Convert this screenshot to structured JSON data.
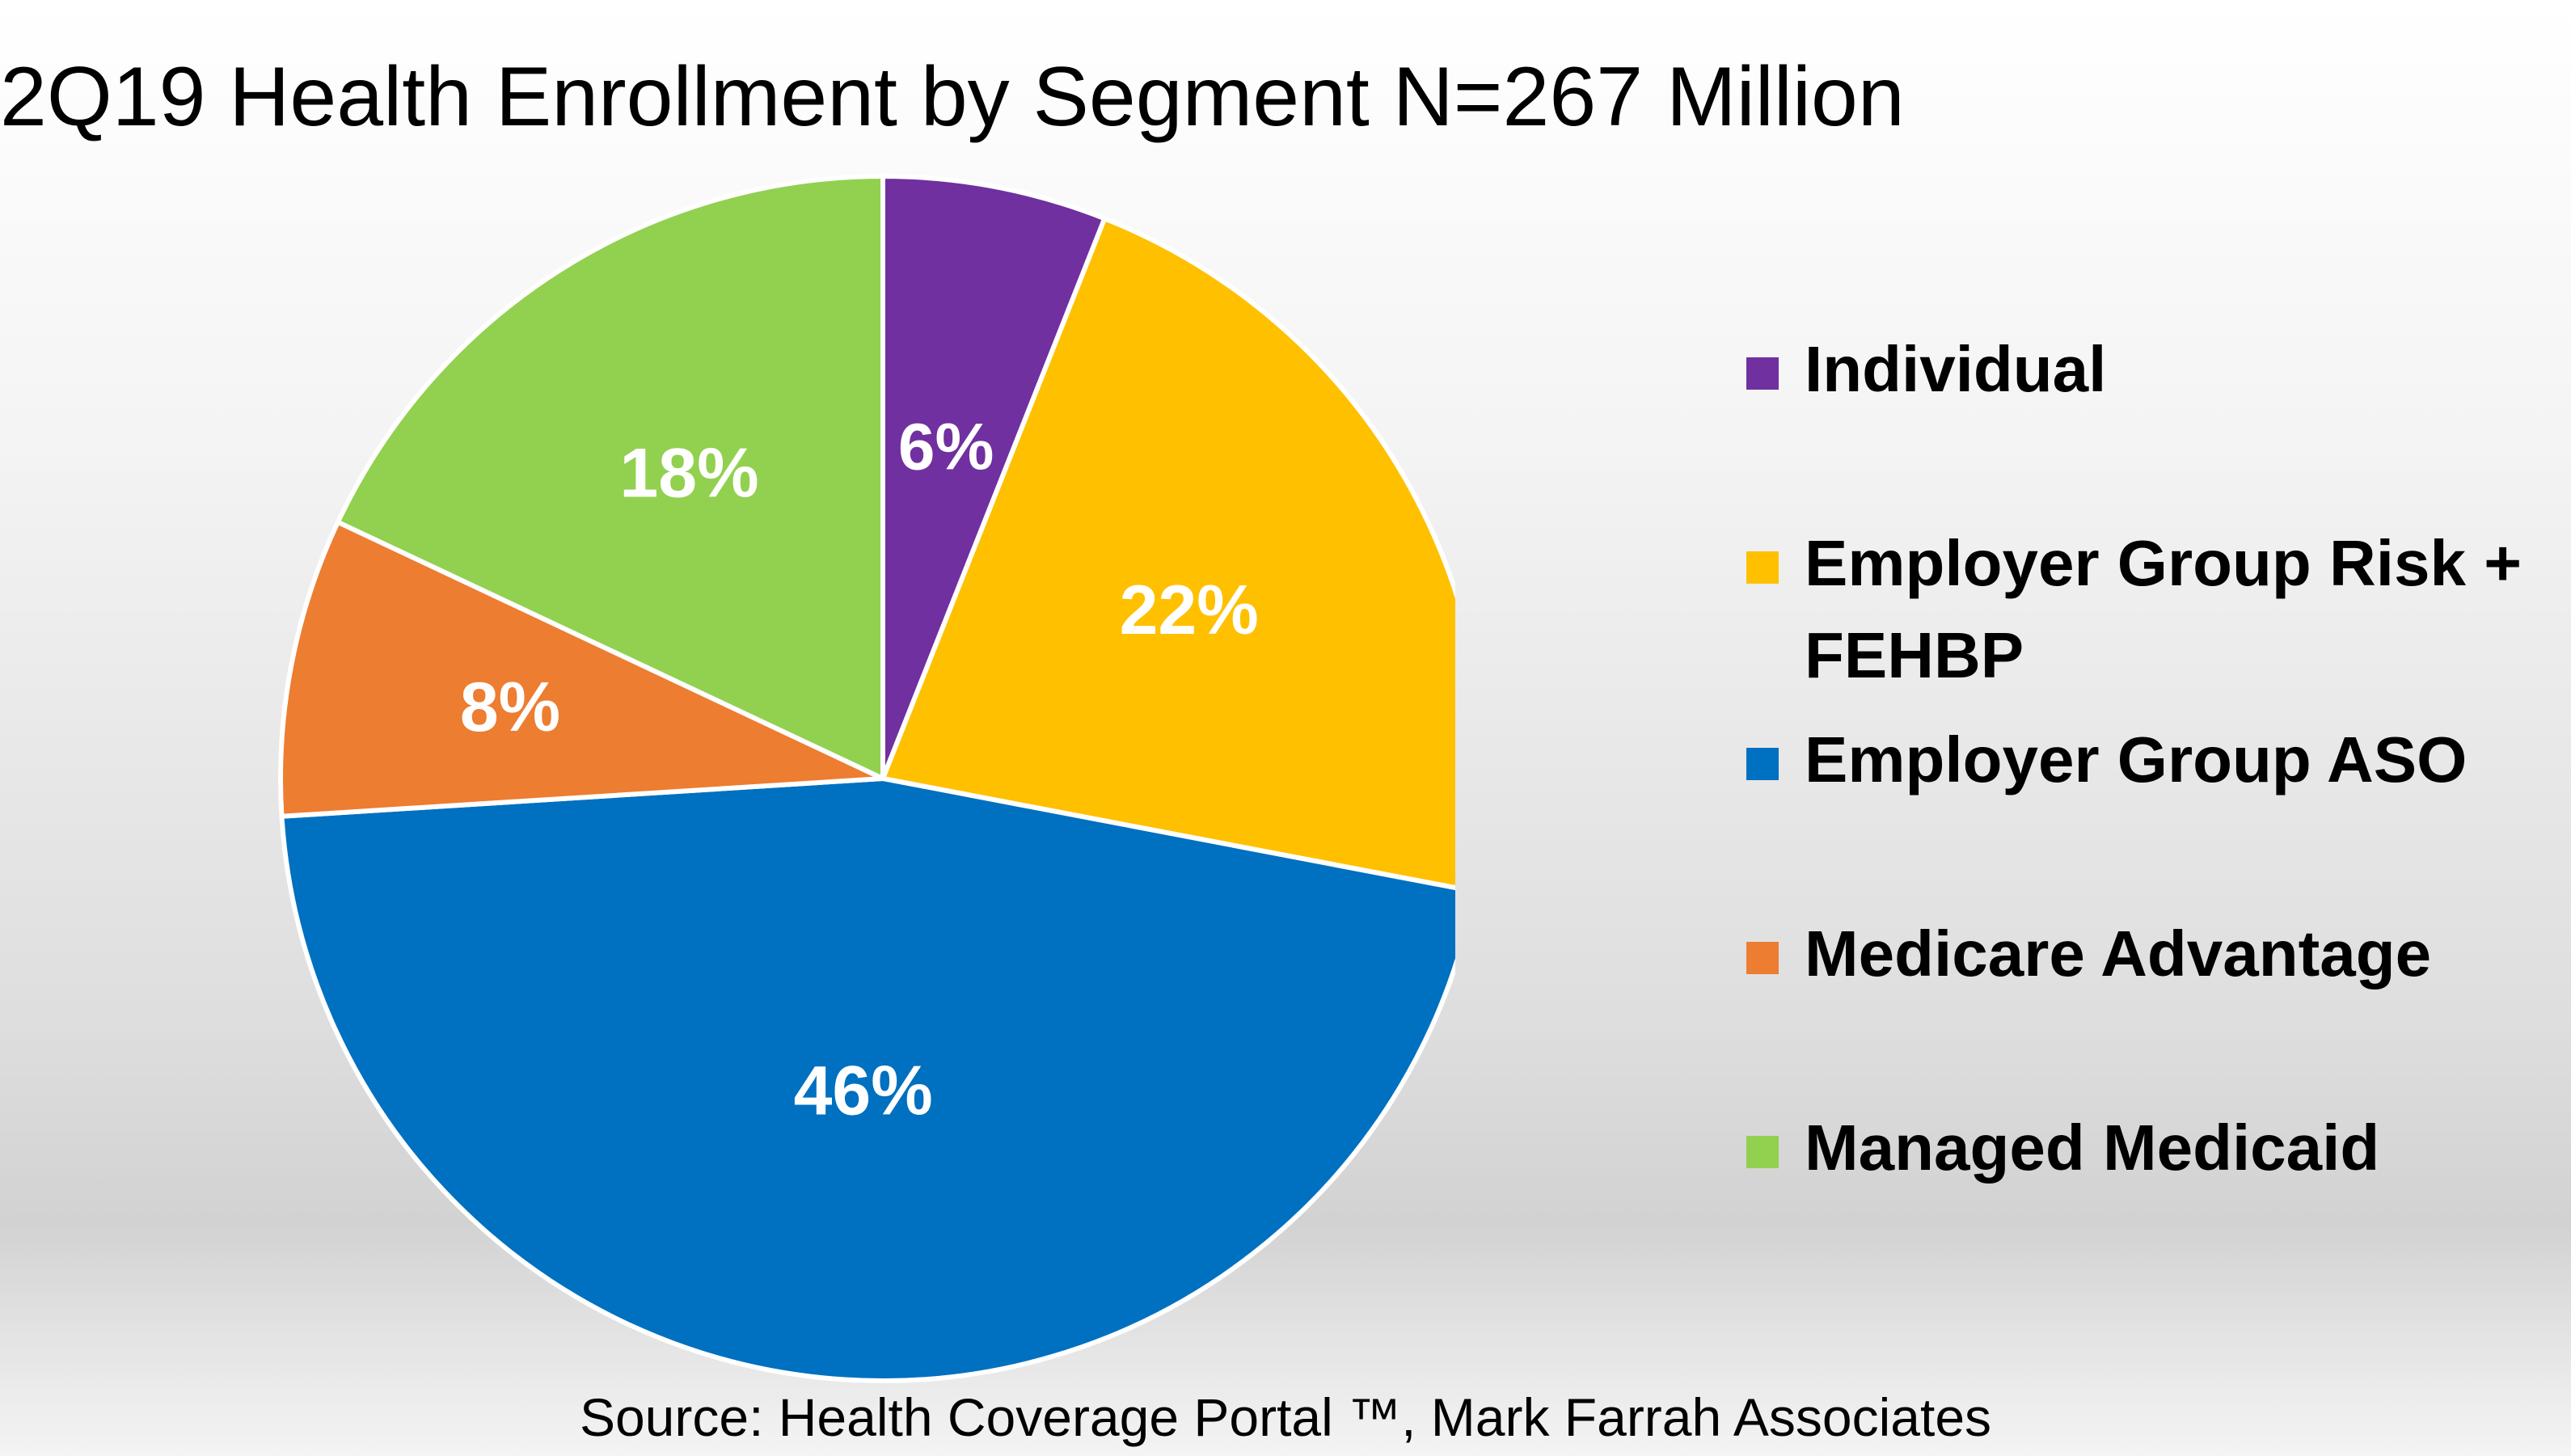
{
  "chart_data": {
    "type": "pie",
    "title": "2Q19 Health Enrollment by Segment N=267 Million",
    "slices": [
      {
        "label": "Individual",
        "value": 6,
        "display": "6%",
        "color": "#7030A0"
      },
      {
        "label": "Employer Group Risk + FEHBP",
        "value": 22,
        "display": "22%",
        "color": "#FFC000"
      },
      {
        "label": "Employer Group ASO",
        "value": 46,
        "display": "46%",
        "color": "#0070C0"
      },
      {
        "label": "Medicare Advantage",
        "value": 8,
        "display": "8%",
        "color": "#ED7D31"
      },
      {
        "label": "Managed Medicaid",
        "value": 18,
        "display": "18%",
        "color": "#92D050"
      }
    ],
    "legend_position": "right",
    "source": "Source: Health Coverage Portal ™, Mark Farrah Associates"
  }
}
